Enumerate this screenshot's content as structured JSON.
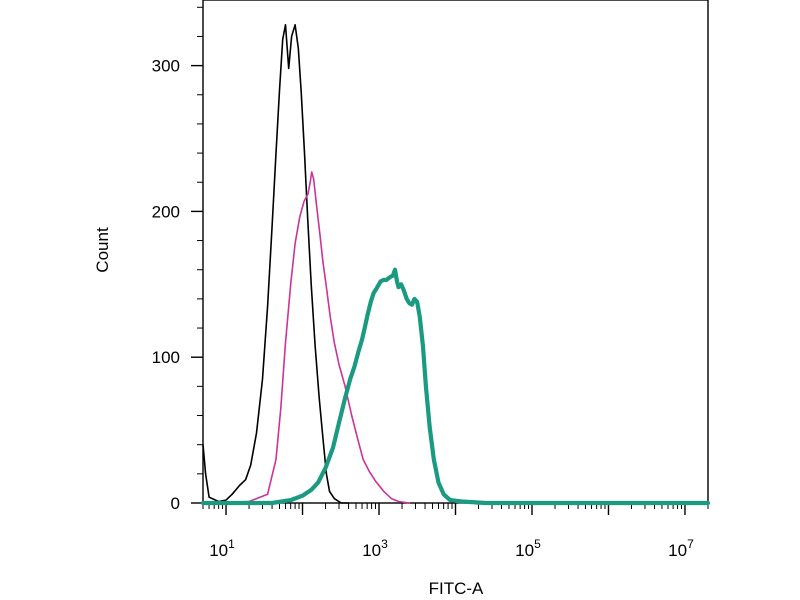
{
  "chart_data": {
    "type": "line",
    "title": "",
    "xlabel": "FITC-A",
    "ylabel": "Count",
    "x_scale": "log",
    "xlim": [
      5,
      20000000
    ],
    "ylim": [
      0,
      345
    ],
    "grid": false,
    "x_ticks": [
      {
        "value": 10,
        "base": "10",
        "exp": "1"
      },
      {
        "value": 1000,
        "base": "10",
        "exp": "3"
      },
      {
        "value": 100000,
        "base": "10",
        "exp": "5"
      },
      {
        "value": 10000000,
        "base": "10",
        "exp": "7"
      }
    ],
    "y_ticks": [
      {
        "value": 0,
        "label": "0"
      },
      {
        "value": 100,
        "label": "100"
      },
      {
        "value": 200,
        "label": "200"
      },
      {
        "value": 300,
        "label": "300"
      }
    ],
    "series": [
      {
        "color": "#000000",
        "width": 1.6,
        "points": [
          [
            5,
            40
          ],
          [
            5.4,
            20
          ],
          [
            6,
            4
          ],
          [
            8,
            1
          ],
          [
            10,
            2
          ],
          [
            12,
            6
          ],
          [
            15,
            12
          ],
          [
            18,
            16
          ],
          [
            21,
            26
          ],
          [
            25,
            48
          ],
          [
            30,
            85
          ],
          [
            35,
            135
          ],
          [
            40,
            190
          ],
          [
            45,
            240
          ],
          [
            50,
            283
          ],
          [
            55,
            318
          ],
          [
            60,
            328
          ],
          [
            66,
            298
          ],
          [
            72,
            320
          ],
          [
            80,
            328
          ],
          [
            88,
            312
          ],
          [
            96,
            282
          ],
          [
            106,
            240
          ],
          [
            117,
            195
          ],
          [
            130,
            150
          ],
          [
            146,
            108
          ],
          [
            165,
            72
          ],
          [
            185,
            44
          ],
          [
            205,
            20
          ],
          [
            225,
            8
          ],
          [
            260,
            3
          ],
          [
            320,
            0
          ],
          [
            400,
            0
          ]
        ]
      },
      {
        "color": "#cc3399",
        "width": 1.6,
        "points": [
          [
            5,
            0
          ],
          [
            20,
            1
          ],
          [
            35,
            6
          ],
          [
            45,
            30
          ],
          [
            52,
            65
          ],
          [
            60,
            110
          ],
          [
            70,
            150
          ],
          [
            80,
            178
          ],
          [
            92,
            196
          ],
          [
            105,
            207
          ],
          [
            118,
            212
          ],
          [
            126,
            220
          ],
          [
            132,
            227
          ],
          [
            140,
            222
          ],
          [
            152,
            205
          ],
          [
            168,
            185
          ],
          [
            185,
            165
          ],
          [
            205,
            148
          ],
          [
            230,
            128
          ],
          [
            260,
            110
          ],
          [
            300,
            95
          ],
          [
            360,
            80
          ],
          [
            440,
            60
          ],
          [
            520,
            45
          ],
          [
            620,
            30
          ],
          [
            740,
            22
          ],
          [
            900,
            15
          ],
          [
            1150,
            8
          ],
          [
            1450,
            3
          ],
          [
            1800,
            1
          ],
          [
            2500,
            0
          ]
        ]
      },
      {
        "color": "#1a9a80",
        "width": 4.2,
        "points": [
          [
            5,
            0
          ],
          [
            40,
            0
          ],
          [
            70,
            2
          ],
          [
            100,
            5
          ],
          [
            130,
            9
          ],
          [
            160,
            14
          ],
          [
            200,
            24
          ],
          [
            250,
            38
          ],
          [
            300,
            55
          ],
          [
            360,
            72
          ],
          [
            420,
            85
          ],
          [
            480,
            94
          ],
          [
            540,
            104
          ],
          [
            600,
            112
          ],
          [
            650,
            120
          ],
          [
            700,
            128
          ],
          [
            780,
            138
          ],
          [
            850,
            144
          ],
          [
            950,
            148
          ],
          [
            1050,
            152
          ],
          [
            1150,
            153
          ],
          [
            1250,
            153
          ],
          [
            1400,
            155
          ],
          [
            1520,
            156
          ],
          [
            1620,
            160
          ],
          [
            1720,
            152
          ],
          [
            1800,
            148
          ],
          [
            1950,
            150
          ],
          [
            2100,
            146
          ],
          [
            2300,
            140
          ],
          [
            2500,
            137
          ],
          [
            2700,
            136
          ],
          [
            2900,
            140
          ],
          [
            3150,
            138
          ],
          [
            3400,
            128
          ],
          [
            3750,
            108
          ],
          [
            4100,
            80
          ],
          [
            4600,
            52
          ],
          [
            5200,
            30
          ],
          [
            6000,
            14
          ],
          [
            7000,
            6
          ],
          [
            8500,
            2
          ],
          [
            12000,
            1
          ],
          [
            25000,
            0
          ],
          [
            100000,
            0
          ],
          [
            1000000,
            0
          ],
          [
            20000000,
            0
          ]
        ]
      }
    ]
  }
}
